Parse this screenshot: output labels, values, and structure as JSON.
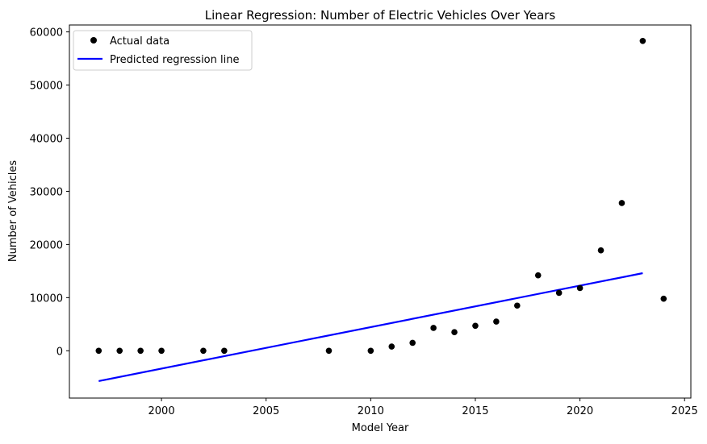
{
  "chart_data": {
    "type": "scatter",
    "title": "Linear Regression: Number of Electric Vehicles Over Years",
    "xlabel": "Model Year",
    "ylabel": "Number of Vehicles",
    "xlim": [
      1995.6,
      2025.3
    ],
    "ylim": [
      -8900,
      61300
    ],
    "xticks": [
      2000,
      2005,
      2010,
      2015,
      2020,
      2025
    ],
    "yticks": [
      0,
      10000,
      20000,
      30000,
      40000,
      50000,
      60000
    ],
    "grid": false,
    "legend_position": "top-left",
    "series": [
      {
        "name": "Actual data",
        "kind": "scatter",
        "color": "#000000",
        "x": [
          1997,
          1998,
          1999,
          2000,
          2002,
          2003,
          2008,
          2010,
          2011,
          2012,
          2013,
          2014,
          2015,
          2016,
          2017,
          2018,
          2019,
          2020,
          2021,
          2022,
          2023,
          2024
        ],
        "y": [
          1,
          1,
          1,
          1,
          1,
          1,
          1,
          1,
          800,
          1500,
          4300,
          3500,
          4700,
          5500,
          8500,
          14200,
          10900,
          11800,
          18900,
          27800,
          58300,
          9800
        ]
      },
      {
        "name": "Predicted regression line",
        "kind": "line",
        "color": "#0000ff",
        "x": [
          1997,
          2023
        ],
        "y": [
          -5700,
          14600
        ]
      }
    ]
  }
}
